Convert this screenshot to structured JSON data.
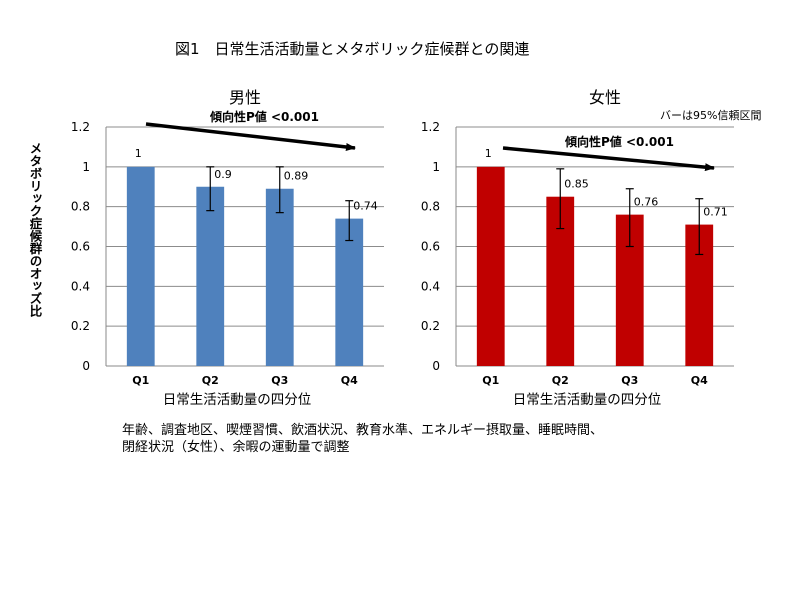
{
  "figure_title": "図1　日常生活活動量とメタボリック症候群との関連",
  "y_axis_title": "メタボリック症候群のオッズ比",
  "error_bar_note": "バーは95%信頼区間",
  "footnote": [
    "年齢、調査地区、喫煙習慣、飲酒状況、教育水準、エネルギー摂取量、睡眠時間、",
    "閉経状況（女性）、余暇の運動量で調整"
  ],
  "chart_data": [
    {
      "type": "bar",
      "title": "男性",
      "xlabel": "日常生活活動量の四分位",
      "ylabel": "メタボリック症候群のオッズ比",
      "categories": [
        "Q1",
        "Q2",
        "Q3",
        "Q4"
      ],
      "values": [
        1,
        0.9,
        0.89,
        0.74
      ],
      "value_labels": [
        "1",
        "0.9",
        "0.89",
        "0.74"
      ],
      "error_low": [
        null,
        0.78,
        0.77,
        0.63
      ],
      "error_high": [
        null,
        1.0,
        1.0,
        0.83
      ],
      "ylim": [
        0,
        1.2
      ],
      "yticks": [
        "0",
        "0.2",
        "0.4",
        "0.6",
        "0.8",
        "1",
        "1.2"
      ],
      "trend_label": "傾向性P値 <0.001",
      "color": "#4f81bd",
      "grid": true
    },
    {
      "type": "bar",
      "title": "女性",
      "xlabel": "日常生活活動量の四分位",
      "ylabel": "メタボリック症候群のオッズ比",
      "categories": [
        "Q1",
        "Q2",
        "Q3",
        "Q4"
      ],
      "values": [
        1,
        0.85,
        0.76,
        0.71
      ],
      "value_labels": [
        "1",
        "0.85",
        "0.76",
        "0.71"
      ],
      "error_low": [
        null,
        0.69,
        0.6,
        0.56
      ],
      "error_high": [
        null,
        0.99,
        0.89,
        0.84
      ],
      "ylim": [
        0,
        1.2
      ],
      "yticks": [
        "0",
        "0.2",
        "0.4",
        "0.6",
        "0.8",
        "1",
        "1.2"
      ],
      "trend_label": "傾向性P値 <0.001",
      "color": "#c00000",
      "grid": true
    }
  ]
}
